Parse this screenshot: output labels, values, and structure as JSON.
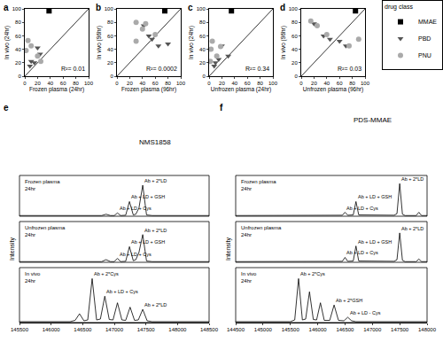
{
  "chart_data": [
    {
      "type": "scatter",
      "title": "a",
      "x_label": "Frozen plasma (24hr)",
      "y_label": "In vivo (24hr)",
      "xlim": [
        0,
        100
      ],
      "ylim": [
        0,
        100
      ],
      "xticks": [
        0,
        20,
        40,
        60,
        80,
        100
      ],
      "yticks": [
        0,
        20,
        40,
        60,
        80,
        100
      ],
      "grid": false,
      "reference_line": {
        "x": [
          0,
          100
        ],
        "y": [
          0,
          100
        ]
      },
      "annotations": [
        {
          "text": "R²= 0.01",
          "x": 97,
          "y": 4
        }
      ],
      "series": [
        {
          "name": "MMAE",
          "color": "#000000",
          "marker": "square",
          "x": [
            38
          ],
          "values": [
            97
          ]
        },
        {
          "name": "PBD",
          "color": "#555555",
          "marker": "triangle-down",
          "x": [
            20,
            24,
            10,
            15,
            8
          ],
          "values": [
            42,
            33,
            22,
            20,
            15
          ]
        },
        {
          "name": "PNU",
          "color": "#aaaaaa",
          "marker": "circle",
          "x": [
            5,
            10,
            2,
            20,
            25
          ],
          "values": [
            53,
            45,
            38,
            30,
            22
          ]
        }
      ]
    },
    {
      "type": "scatter",
      "title": "b",
      "x_label": "Frozen plasma (96hr)",
      "y_label": "In vivo (96hr)",
      "xlim": [
        0,
        100
      ],
      "ylim": [
        0,
        100
      ],
      "xticks": [
        0,
        20,
        40,
        60,
        80,
        100
      ],
      "yticks": [
        0,
        20,
        40,
        60,
        80,
        100
      ],
      "grid": false,
      "reference_line": {
        "x": [
          0,
          100
        ],
        "y": [
          0,
          100
        ]
      },
      "annotations": [
        {
          "text": "R²= 0.0002",
          "x": 97,
          "y": 4
        }
      ],
      "series": [
        {
          "name": "MMAE",
          "color": "#000000",
          "marker": "square",
          "x": [
            75
          ],
          "values": [
            97
          ]
        },
        {
          "name": "PBD",
          "color": "#555555",
          "marker": "triangle-down",
          "x": [
            42,
            50,
            55,
            65,
            80
          ],
          "values": [
            75,
            60,
            55,
            45,
            48
          ]
        },
        {
          "name": "PNU",
          "color": "#aaaaaa",
          "marker": "circle",
          "x": [
            30,
            45,
            40,
            60,
            30
          ],
          "values": [
            80,
            78,
            70,
            62,
            52
          ]
        }
      ]
    },
    {
      "type": "scatter",
      "title": "c",
      "x_label": "Unfrozen plasma (24hr)",
      "y_label": "In vivo (24hr)",
      "xlim": [
        0,
        100
      ],
      "ylim": [
        0,
        100
      ],
      "xticks": [
        0,
        20,
        40,
        60,
        80,
        100
      ],
      "yticks": [
        0,
        20,
        40,
        60,
        80,
        100
      ],
      "grid": false,
      "reference_line": {
        "x": [
          0,
          100
        ],
        "y": [
          0,
          100
        ]
      },
      "annotations": [
        {
          "text": "R²= 0.34",
          "x": 97,
          "y": 4
        }
      ],
      "series": [
        {
          "name": "MMAE",
          "color": "#000000",
          "marker": "square",
          "x": [
            35
          ],
          "values": [
            97
          ]
        },
        {
          "name": "PBD",
          "color": "#555555",
          "marker": "triangle-down",
          "x": [
            20,
            15,
            10,
            8,
            30
          ],
          "values": [
            45,
            25,
            20,
            15,
            30
          ]
        },
        {
          "name": "PNU",
          "color": "#aaaaaa",
          "marker": "circle",
          "x": [
            5,
            18,
            3,
            12,
            2
          ],
          "values": [
            52,
            44,
            40,
            30,
            22
          ]
        }
      ]
    },
    {
      "type": "scatter",
      "title": "d",
      "x_label": "Unfrozen plasma (96hr)",
      "y_label": "In vivo (96hr)",
      "xlim": [
        0,
        100
      ],
      "ylim": [
        0,
        100
      ],
      "xticks": [
        0,
        20,
        40,
        60,
        80,
        100
      ],
      "yticks": [
        0,
        20,
        40,
        60,
        80,
        100
      ],
      "grid": false,
      "legend": "top right",
      "legend_title": "drug class",
      "reference_line": {
        "x": [
          0,
          100
        ],
        "y": [
          0,
          100
        ]
      },
      "annotations": [
        {
          "text": "R²= 0.03",
          "x": 97,
          "y": 4
        }
      ],
      "series": [
        {
          "name": "MMAE",
          "color": "#000000",
          "marker": "square",
          "x": [
            85
          ],
          "values": [
            97
          ]
        },
        {
          "name": "PBD",
          "color": "#555555",
          "marker": "triangle-down",
          "x": [
            20,
            35,
            45,
            60,
            70
          ],
          "values": [
            78,
            60,
            55,
            52,
            45
          ]
        },
        {
          "name": "PNU",
          "color": "#aaaaaa",
          "marker": "circle",
          "x": [
            15,
            25,
            40,
            75,
            90
          ],
          "values": [
            82,
            75,
            62,
            45,
            55
          ]
        }
      ]
    },
    {
      "type": "line",
      "title": "e",
      "subtitle": "NMS1858",
      "y_label": "Intensity",
      "xlim": [
        145500,
        148500
      ],
      "xticks": [
        145500,
        146000,
        146500,
        147000,
        147500,
        148000,
        148500
      ],
      "ylim": [
        0,
        125
      ],
      "tick_labels": "x",
      "grid": false,
      "series": [
        {
          "name": "Frozen plasma\n24hr",
          "color": "#000000",
          "x": [
            145500,
            146800,
            146870,
            146940,
            147000,
            147050,
            147100,
            147180,
            147240,
            147300,
            147340,
            147390,
            147450,
            147510,
            147600,
            148500
          ],
          "values": [
            2,
            2,
            6,
            2,
            2,
            10,
            2,
            3,
            45,
            4,
            6,
            25,
            95,
            4,
            2,
            2
          ],
          "annotations": [
            {
              "text": "Ab + 2*LD",
              "x": 147450,
              "y": 95
            },
            {
              "text": "Ab + LD + GSH",
              "x": 147240,
              "y": 45
            },
            {
              "text": "Ab + LD + Cys",
              "x": 147050,
              "y": 10
            }
          ]
        },
        {
          "name": "Unfrozen plasma\n24hr",
          "color": "#000000",
          "x": [
            145500,
            146800,
            146870,
            146940,
            147000,
            147050,
            147100,
            147180,
            147240,
            147300,
            147340,
            147390,
            147450,
            147510,
            147600,
            148500
          ],
          "values": [
            2,
            2,
            8,
            2,
            2,
            12,
            2,
            3,
            48,
            5,
            8,
            30,
            85,
            4,
            2,
            2
          ],
          "annotations": [
            {
              "text": "Ab + 2*LD",
              "x": 147450,
              "y": 85
            },
            {
              "text": "Ab + LD + GSH",
              "x": 147240,
              "y": 48
            },
            {
              "text": "Ab + LD + Cys",
              "x": 147050,
              "y": 12
            }
          ]
        },
        {
          "name": "In vivo\n24hr",
          "color": "#000000",
          "x": [
            145500,
            146300,
            146380,
            146450,
            146520,
            146580,
            146650,
            146720,
            146780,
            146850,
            146920,
            146980,
            147050,
            147120,
            147180,
            147250,
            147320,
            147380,
            147450,
            147520,
            147600,
            148500
          ],
          "values": [
            2,
            2,
            5,
            20,
            4,
            6,
            100,
            6,
            8,
            60,
            7,
            6,
            45,
            6,
            5,
            35,
            5,
            6,
            30,
            4,
            2,
            2
          ],
          "annotations": [
            {
              "text": "Ab + 2*Cys",
              "x": 146650,
              "y": 100
            },
            {
              "text": "Ab + LD + Cys",
              "x": 146850,
              "y": 60
            },
            {
              "text": "Ab + 2*LD",
              "x": 147450,
              "y": 30
            }
          ]
        }
      ]
    },
    {
      "type": "line",
      "title": "f",
      "subtitle": "PDS-MMAE",
      "y_label": "Intensity",
      "xlim": [
        144500,
        148000
      ],
      "xticks": [
        144500,
        145000,
        145500,
        146000,
        146500,
        147000,
        147500,
        148000
      ],
      "ylim": [
        0,
        125
      ],
      "tick_labels": "x",
      "grid": false,
      "series": [
        {
          "name": "Frozen plasma\n24hr",
          "color": "#000000",
          "x": [
            144500,
            146400,
            146450,
            146500,
            146550,
            146650,
            146700,
            146750,
            147000,
            147400,
            147450,
            147500,
            147550,
            147600,
            147800,
            147850,
            147900,
            148000
          ],
          "values": [
            2,
            2,
            3,
            12,
            3,
            4,
            45,
            4,
            3,
            3,
            8,
            100,
            6,
            2,
            2,
            12,
            2,
            2
          ],
          "annotations": [
            {
              "text": "Ab + 2*LD",
              "x": 147500,
              "y": 100
            },
            {
              "text": "Ab + LD + GSH",
              "x": 146700,
              "y": 45
            },
            {
              "text": "Ab + LD + Cys",
              "x": 146500,
              "y": 12
            }
          ]
        },
        {
          "name": "Unfrozen plasma\n24hr",
          "color": "#000000",
          "x": [
            144500,
            146400,
            146450,
            146500,
            146550,
            146650,
            146700,
            146750,
            147000,
            147400,
            147450,
            147500,
            147550,
            147600,
            147800,
            147850,
            147900,
            148000
          ],
          "values": [
            2,
            2,
            3,
            15,
            3,
            4,
            50,
            4,
            3,
            3,
            8,
            90,
            6,
            2,
            2,
            10,
            2,
            2
          ],
          "annotations": [
            {
              "text": "Ab + 2*LD",
              "x": 147500,
              "y": 90
            },
            {
              "text": "Ab + LD + GSH",
              "x": 146700,
              "y": 50
            },
            {
              "text": "Ab + LD + Cys",
              "x": 146500,
              "y": 15
            }
          ]
        },
        {
          "name": "In vivo\n24hr",
          "color": "#000000",
          "x": [
            144500,
            145500,
            145580,
            145650,
            145720,
            145780,
            145850,
            145920,
            145980,
            146050,
            146120,
            146220,
            146300,
            146380,
            146480,
            146550,
            146620,
            146700,
            148000
          ],
          "values": [
            2,
            2,
            6,
            100,
            6,
            8,
            70,
            7,
            6,
            45,
            5,
            5,
            40,
            5,
            4,
            12,
            4,
            2,
            2
          ],
          "annotations": [
            {
              "text": "Ab + 2*Cys",
              "x": 145650,
              "y": 100
            },
            {
              "text": "Ab + 2*GSH",
              "x": 146300,
              "y": 40
            },
            {
              "text": "Ab + LD - Cys",
              "x": 146550,
              "y": 12
            }
          ]
        }
      ]
    }
  ]
}
